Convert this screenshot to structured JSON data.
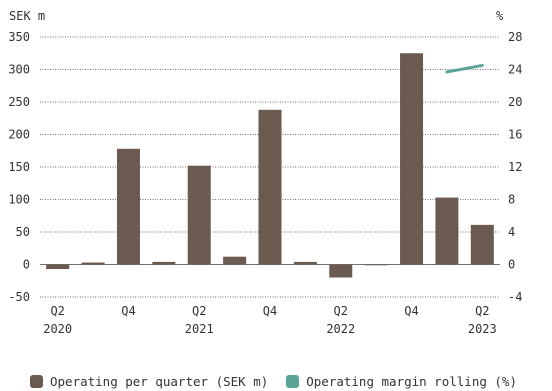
{
  "chart_data": {
    "type": "bar",
    "left_unit": "SEK m",
    "right_unit": "%",
    "left_ticks": [
      350,
      300,
      250,
      200,
      150,
      100,
      50,
      0,
      -50
    ],
    "right_ticks": [
      28,
      24,
      20,
      16,
      12,
      8,
      4,
      0,
      -4
    ],
    "ylim_left": [
      -50,
      350
    ],
    "ylim_right": [
      -4,
      28
    ],
    "grid": true,
    "grid_style": "dotted",
    "categories": [
      "Q2 2020",
      "Q3 2020",
      "Q4 2020",
      "Q1 2021",
      "Q2 2021",
      "Q3 2021",
      "Q4 2021",
      "Q1 2022",
      "Q2 2022",
      "Q3 2022",
      "Q4 2022",
      "Q1 2023",
      "Q2 2023"
    ],
    "x_tick_labels": [
      {
        "index": 0,
        "line1": "Q2",
        "line2": "2020"
      },
      {
        "index": 2,
        "line1": "Q4",
        "line2": ""
      },
      {
        "index": 4,
        "line1": "Q2",
        "line2": "2021"
      },
      {
        "index": 6,
        "line1": "Q4",
        "line2": ""
      },
      {
        "index": 8,
        "line1": "Q2",
        "line2": "2022"
      },
      {
        "index": 10,
        "line1": "Q4",
        "line2": ""
      },
      {
        "index": 12,
        "line1": "Q2",
        "line2": "2023"
      }
    ],
    "series": [
      {
        "name": "Operating per quarter (SEK m)",
        "type": "bar",
        "axis": "left",
        "color": "#6b5a4f",
        "values": [
          -7,
          3,
          178,
          4,
          152,
          12,
          238,
          4,
          -20,
          -1,
          325,
          103,
          61
        ]
      },
      {
        "name": "Operating margin rolling (%)",
        "type": "line",
        "axis": "right",
        "color": "#5aa596",
        "values": [
          null,
          null,
          null,
          null,
          null,
          null,
          null,
          null,
          null,
          null,
          null,
          23.7,
          24.5
        ]
      }
    ],
    "legend_position": "bottom"
  }
}
